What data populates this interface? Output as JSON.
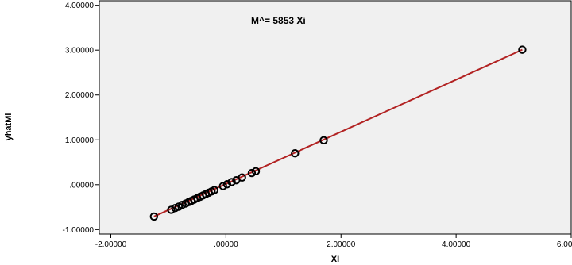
{
  "chart_data": {
    "type": "scatter",
    "title": "",
    "annotation": "M^= 5853 Xi",
    "xlabel": "XI",
    "ylabel": "yhatMi",
    "xlim": [
      -2.2,
      6.0
    ],
    "ylim": [
      -1.1,
      4.1
    ],
    "xticks": [
      -2,
      0,
      2,
      4,
      6
    ],
    "xtick_labels": [
      "-2.00000",
      ".00000",
      "2.00000",
      "4.00000",
      "6.00000"
    ],
    "yticks": [
      -1,
      0,
      1,
      2,
      3,
      4
    ],
    "ytick_labels": [
      "-1.00000",
      ".00000",
      "1.00000",
      "2.00000",
      "3.00000",
      "4.00000"
    ],
    "grid": false,
    "series": [
      {
        "x": [
          -1.25,
          -0.95,
          -0.88,
          -0.82,
          -0.76,
          -0.7,
          -0.65,
          -0.6,
          -0.55,
          -0.5,
          -0.45,
          -0.4,
          -0.35,
          -0.3,
          -0.25,
          -0.2,
          -0.05,
          0.02,
          0.1,
          0.18,
          0.28,
          0.45,
          0.52,
          1.2,
          1.7,
          5.15
        ],
        "y": [
          -0.71,
          -0.56,
          -0.52,
          -0.49,
          -0.45,
          -0.42,
          -0.39,
          -0.36,
          -0.33,
          -0.3,
          -0.27,
          -0.24,
          -0.21,
          -0.18,
          -0.15,
          -0.12,
          -0.03,
          0.01,
          0.06,
          0.1,
          0.16,
          0.26,
          0.3,
          0.7,
          0.99,
          3.01
        ]
      }
    ],
    "fit_line": {
      "x": [
        -1.25,
        5.15
      ],
      "y": [
        -0.71,
        3.01
      ]
    },
    "colors": {
      "plot_bg": "#f0f0f0",
      "line": "#b22222",
      "marker": "#000000"
    }
  }
}
